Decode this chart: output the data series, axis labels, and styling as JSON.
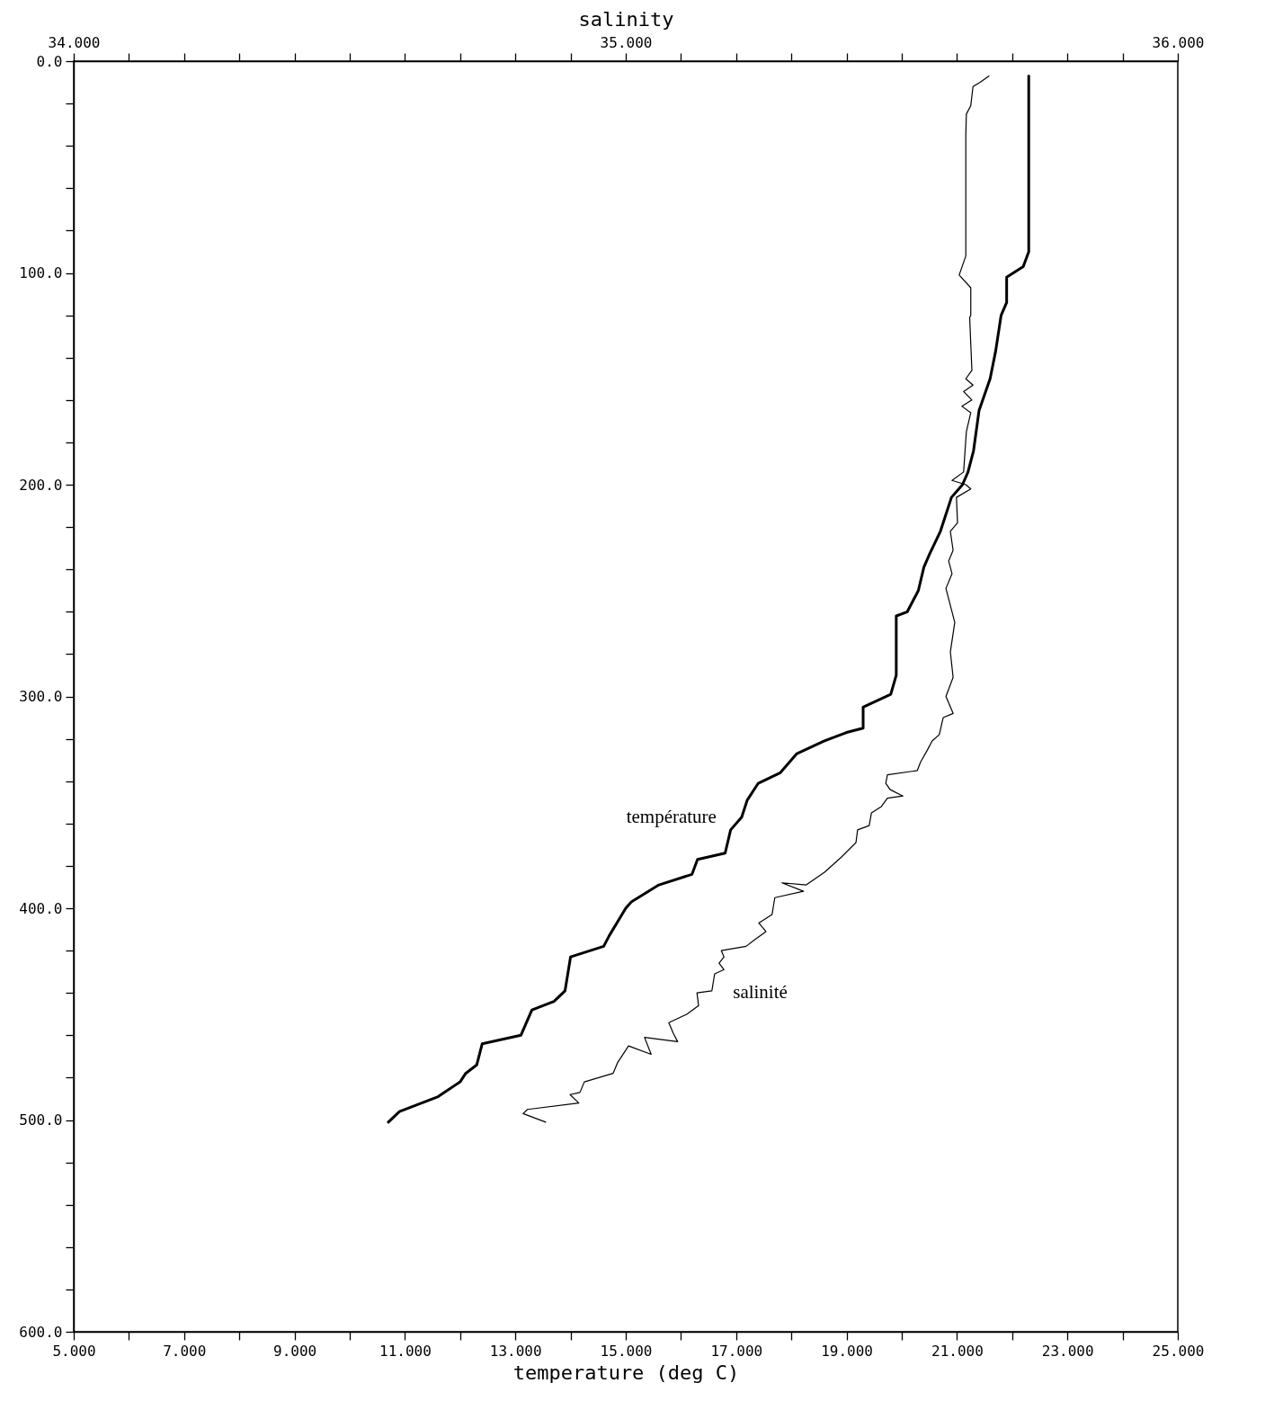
{
  "chart_data": {
    "type": "line",
    "xlabel": "temperature  (deg C)",
    "x2label": "salinity",
    "xlim": [
      5,
      25
    ],
    "xticks": [
      {
        "value": 5,
        "label": "5.000"
      },
      {
        "value": 6,
        "label": null
      },
      {
        "value": 7,
        "label": "7.000"
      },
      {
        "value": 8,
        "label": null
      },
      {
        "value": 9,
        "label": "9.000"
      },
      {
        "value": 10,
        "label": null
      },
      {
        "value": 11,
        "label": "11.000"
      },
      {
        "value": 12,
        "label": null
      },
      {
        "value": 13,
        "label": "13.000"
      },
      {
        "value": 14,
        "label": null
      },
      {
        "value": 15,
        "label": "15.000"
      },
      {
        "value": 16,
        "label": null
      },
      {
        "value": 17,
        "label": "17.000"
      },
      {
        "value": 18,
        "label": null
      },
      {
        "value": 19,
        "label": "19.000"
      },
      {
        "value": 20,
        "label": null
      },
      {
        "value": 21,
        "label": "21.000"
      },
      {
        "value": 22,
        "label": null
      },
      {
        "value": 23,
        "label": "23.000"
      },
      {
        "value": 24,
        "label": null
      },
      {
        "value": 25,
        "label": "25.000"
      }
    ],
    "x2lim": [
      34,
      36
    ],
    "x2ticks": [
      {
        "value": 34,
        "label": "34.000"
      },
      {
        "value": 34.1,
        "label": null
      },
      {
        "value": 34.2,
        "label": null
      },
      {
        "value": 34.3,
        "label": null
      },
      {
        "value": 34.4,
        "label": null
      },
      {
        "value": 34.5,
        "label": null
      },
      {
        "value": 34.6,
        "label": null
      },
      {
        "value": 34.7,
        "label": null
      },
      {
        "value": 34.8,
        "label": null
      },
      {
        "value": 34.9,
        "label": null
      },
      {
        "value": 35,
        "label": "35.000"
      },
      {
        "value": 35.1,
        "label": null
      },
      {
        "value": 35.2,
        "label": null
      },
      {
        "value": 35.3,
        "label": null
      },
      {
        "value": 35.4,
        "label": null
      },
      {
        "value": 35.5,
        "label": null
      },
      {
        "value": 35.6,
        "label": null
      },
      {
        "value": 35.7,
        "label": null
      },
      {
        "value": 35.8,
        "label": null
      },
      {
        "value": 35.9,
        "label": null
      },
      {
        "value": 36,
        "label": "36.000"
      }
    ],
    "ylim": [
      600,
      0
    ],
    "yticks": [
      {
        "value": 0,
        "label": "0.0"
      },
      {
        "value": 20,
        "label": null
      },
      {
        "value": 40,
        "label": null
      },
      {
        "value": 60,
        "label": null
      },
      {
        "value": 80,
        "label": null
      },
      {
        "value": 100,
        "label": "100.0"
      },
      {
        "value": 120,
        "label": null
      },
      {
        "value": 140,
        "label": null
      },
      {
        "value": 160,
        "label": null
      },
      {
        "value": 180,
        "label": null
      },
      {
        "value": 200,
        "label": "200.0"
      },
      {
        "value": 220,
        "label": null
      },
      {
        "value": 240,
        "label": null
      },
      {
        "value": 260,
        "label": null
      },
      {
        "value": 280,
        "label": null
      },
      {
        "value": 300,
        "label": "300.0"
      },
      {
        "value": 320,
        "label": null
      },
      {
        "value": 340,
        "label": null
      },
      {
        "value": 360,
        "label": null
      },
      {
        "value": 380,
        "label": null
      },
      {
        "value": 400,
        "label": "400.0"
      },
      {
        "value": 420,
        "label": null
      },
      {
        "value": 440,
        "label": null
      },
      {
        "value": 460,
        "label": null
      },
      {
        "value": 480,
        "label": null
      },
      {
        "value": 500,
        "label": "500.0"
      },
      {
        "value": 520,
        "label": null
      },
      {
        "value": 540,
        "label": null
      },
      {
        "value": 560,
        "label": null
      },
      {
        "value": 580,
        "label": null
      },
      {
        "value": 600,
        "label": "600.0"
      }
    ],
    "series": [
      {
        "name": "température",
        "color": "#000000",
        "x": [
          22.3,
          22.3,
          22.2,
          21.9,
          21.9,
          21.8,
          21.7,
          21.6,
          21.4,
          21.3,
          21.2,
          21.1,
          20.9,
          20.8,
          20.7,
          20.5,
          20.4,
          20.3,
          20.1,
          19.9,
          19.9,
          19.8,
          19.3,
          19.3,
          19.0,
          18.6,
          18.1,
          17.8,
          17.4,
          17.2,
          17.1,
          16.9,
          16.8,
          16.3,
          16.2,
          15.6,
          15.1,
          15.0,
          14.7,
          14.6,
          14.0,
          13.9,
          13.7,
          13.3,
          13.1,
          12.4,
          12.3,
          12.1,
          12.0,
          11.6,
          10.9,
          10.7
        ],
        "values": [
          7,
          90,
          97,
          102,
          114,
          120,
          137,
          150,
          165,
          184,
          194,
          200,
          206,
          214,
          222,
          233,
          239,
          250,
          260,
          262,
          290,
          299,
          305,
          315,
          317,
          321,
          327,
          336,
          341,
          349,
          357,
          363,
          374,
          377,
          384,
          389,
          397,
          400,
          413,
          418,
          423,
          439,
          444,
          448,
          460,
          464,
          474,
          478,
          482,
          489,
          496,
          501
        ]
      },
      {
        "name": "salinité",
        "color": "#000000",
        "axis": "x2",
        "x": [
          35.658,
          35.642,
          35.629,
          35.625,
          35.617,
          35.616,
          35.616,
          35.604,
          35.625,
          35.625,
          35.623,
          35.627,
          35.616,
          35.629,
          35.612,
          35.627,
          35.609,
          35.625,
          35.617,
          35.612,
          35.591,
          35.616,
          35.625,
          35.599,
          35.601,
          35.588,
          35.593,
          35.585,
          35.591,
          35.58,
          35.596,
          35.588,
          35.593,
          35.58,
          35.593,
          35.575,
          35.568,
          35.555,
          35.547,
          35.534,
          35.528,
          35.474,
          35.471,
          35.479,
          35.502,
          35.474,
          35.463,
          35.445,
          35.441,
          35.42,
          35.417,
          35.39,
          35.36,
          35.327,
          35.283,
          35.322,
          35.27,
          35.265,
          35.241,
          35.254,
          35.233,
          35.218,
          35.173,
          35.178,
          35.169,
          35.178,
          35.161,
          35.156,
          35.129,
          35.132,
          35.111,
          35.078,
          35.086,
          35.094,
          35.034,
          35.046,
          35.005,
          34.985,
          34.977,
          34.925,
          34.917,
          34.899,
          34.915,
          34.822,
          34.814,
          34.855
        ],
        "values": [
          7,
          10,
          12,
          21,
          25,
          35,
          92,
          101,
          107,
          120,
          121,
          146,
          150,
          153,
          156,
          160,
          163,
          166,
          175,
          194,
          198,
          200,
          202,
          206,
          218,
          222,
          231,
          236,
          242,
          249,
          265,
          279,
          291,
          300,
          308,
          310,
          318,
          321,
          325,
          331,
          335,
          337,
          341,
          344,
          347,
          348,
          352,
          355,
          361,
          363,
          369,
          376,
          383,
          389,
          388,
          392,
          395,
          403,
          407,
          411,
          415,
          418,
          420,
          423,
          426,
          429,
          431,
          439,
          440,
          446,
          450,
          454,
          459,
          463,
          461,
          469,
          465,
          473,
          478,
          482,
          487,
          488,
          492,
          495,
          497,
          501
        ]
      }
    ]
  }
}
